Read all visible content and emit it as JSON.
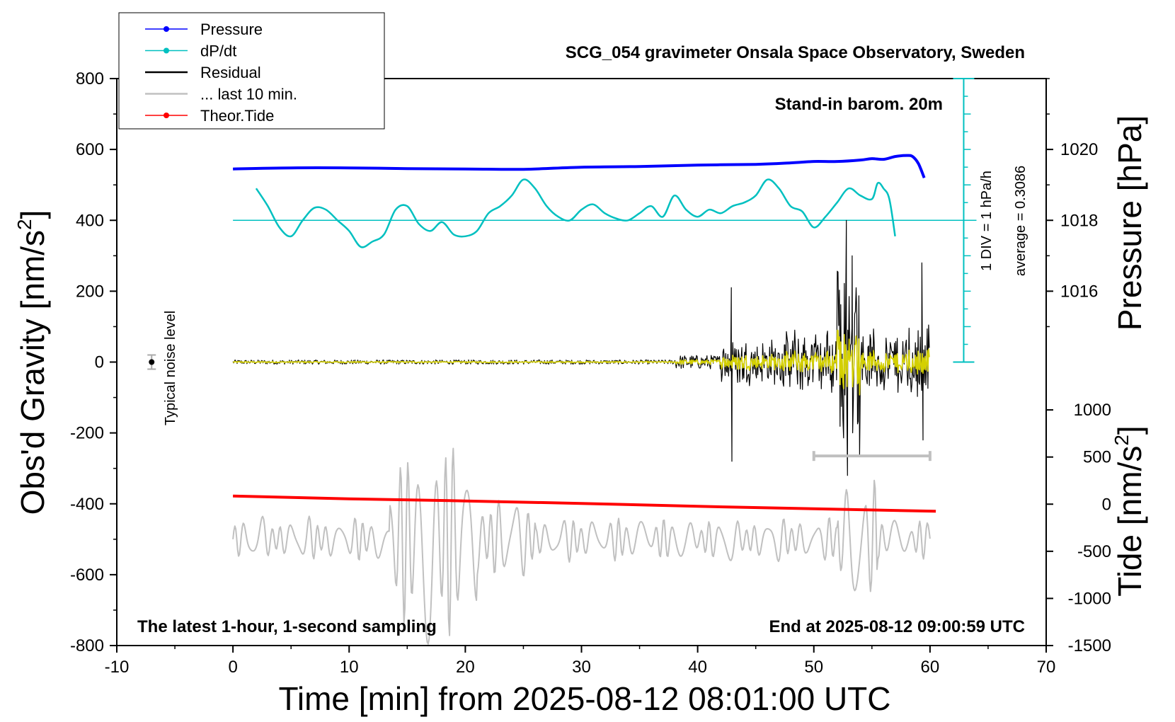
{
  "chart_data": {
    "type": "line",
    "title": "SCG_054 gravimeter Onsala Space Observatory, Sweden",
    "xlabel": "Time [min] from 2025-08-12 08:01:00 UTC",
    "ylabel": "Obs'd Gravity [nm/s",
    "ylabel_sup": "2",
    "ylabel_end": "]",
    "right_label_pressure": "Pressure [hPa]",
    "right_label_tide": "Tide [nm/s",
    "right_label_tide_sup": "2",
    "right_label_tide_end": "]",
    "xlim": [
      -10,
      70
    ],
    "ylim": [
      -800,
      800
    ],
    "x_ticks": [
      "-10",
      "0",
      "10",
      "20",
      "30",
      "40",
      "50",
      "60",
      "70"
    ],
    "y_ticks": [
      "800",
      "600",
      "400",
      "200",
      "0",
      "-200",
      "-400",
      "-600",
      "-800"
    ],
    "pressure_ticks": [
      "1020",
      "1018",
      "1016"
    ],
    "tide_ticks": [
      "1000",
      "500",
      "0",
      "-500",
      "-1000",
      "-1500"
    ],
    "annotations": {
      "stand_in": "Stand-in barom. 20m",
      "latest": "The latest 1-hour, 1-second sampling",
      "end_at": "End at 2025-08-12 09:00:59 UTC",
      "div": "1 DIV = 1 hPa/h",
      "average": "average = 0.3086",
      "noise": "Typical noise level"
    },
    "legend": [
      {
        "label": "Pressure",
        "color": "#0000ff",
        "marker": true
      },
      {
        "label": "dP/dt",
        "color": "#00c0c0",
        "marker": true
      },
      {
        "label": "Residual",
        "color": "#000000",
        "marker": false
      },
      {
        "label": "... last 10 min.",
        "color": "#c0c0c0",
        "marker": false
      },
      {
        "label": "Theor.Tide",
        "color": "#ff0000",
        "marker": true
      }
    ],
    "colors": {
      "pressure": "#0000ff",
      "dpdt": "#00c0c0",
      "residual": "#000000",
      "residual_filtered": "#d4d000",
      "last10": "#c0c0c0",
      "tide": "#ff0000"
    },
    "series": [
      {
        "name": "Pressure",
        "axis": "gravity-equivalent",
        "x": [
          0,
          5,
          10,
          15,
          20,
          25,
          30,
          35,
          40,
          45,
          48,
          50,
          52,
          54,
          55,
          56,
          57,
          58,
          58.5,
          59,
          59.5
        ],
        "values": [
          545,
          548,
          548,
          546,
          545,
          544,
          550,
          552,
          556,
          558,
          562,
          566,
          566,
          570,
          574,
          572,
          580,
          583,
          580,
          560,
          520
        ]
      },
      {
        "name": "dP/dt",
        "x": [
          2,
          3,
          4,
          5,
          6,
          7,
          8,
          9,
          10,
          11,
          12,
          13,
          14,
          15,
          16,
          17,
          18,
          19,
          20,
          21,
          22,
          23,
          24,
          25,
          26,
          27,
          28,
          29,
          30,
          31,
          32,
          33,
          34,
          35,
          36,
          37,
          38,
          39,
          40,
          41,
          42,
          43,
          44,
          45,
          46,
          47,
          48,
          49,
          50,
          51,
          52,
          53,
          54,
          55,
          55.5,
          56,
          56.5,
          57
        ],
        "values": [
          490,
          440,
          380,
          355,
          400,
          435,
          430,
          400,
          370,
          325,
          340,
          360,
          430,
          440,
          390,
          370,
          395,
          360,
          355,
          370,
          420,
          440,
          470,
          515,
          490,
          440,
          410,
          400,
          430,
          445,
          420,
          405,
          400,
          420,
          440,
          410,
          470,
          430,
          410,
          430,
          420,
          440,
          450,
          470,
          515,
          490,
          440,
          425,
          380,
          410,
          450,
          490,
          470,
          460,
          505,
          490,
          460,
          355
        ],
        "baseline": 400
      },
      {
        "name": "Theor.Tide",
        "x": [
          0,
          10,
          20,
          30,
          40,
          50,
          60.5
        ],
        "values": [
          -378,
          -386,
          -392,
          -399,
          -407,
          -414,
          -421
        ]
      }
    ],
    "last10_bar": [
      50,
      60
    ]
  }
}
